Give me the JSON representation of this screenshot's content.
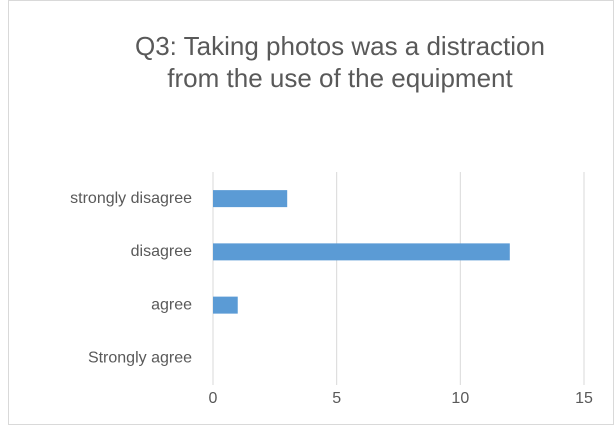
{
  "chart_data": {
    "type": "bar",
    "orientation": "horizontal",
    "title": "Q3: Taking photos was a distraction from the use of the equipment",
    "categories": [
      "strongly disagree",
      "disagree",
      "agree",
      "Strongly agree"
    ],
    "values": [
      3,
      12,
      1,
      0
    ],
    "color": "#5b9bd5",
    "xlim": [
      0,
      15
    ],
    "xticks": [
      0,
      5,
      10,
      15
    ],
    "grid": true
  }
}
